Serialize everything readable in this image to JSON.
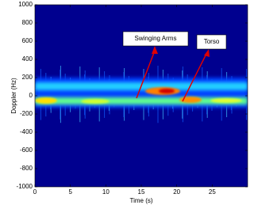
{
  "chart_data": {
    "type": "heatmap",
    "xlabel": "Time (s)",
    "ylabel": "Doppler (Hz)",
    "xlim": [
      0,
      30
    ],
    "xticks": [
      0,
      5,
      10,
      15,
      20,
      25
    ],
    "ylim": [
      -1000,
      1000
    ],
    "yticks": [
      -1000,
      -800,
      -600,
      -400,
      -200,
      0,
      200,
      400,
      600,
      800,
      1000
    ],
    "annotations": [
      "Swinging Arms",
      "Torso"
    ]
  }
}
